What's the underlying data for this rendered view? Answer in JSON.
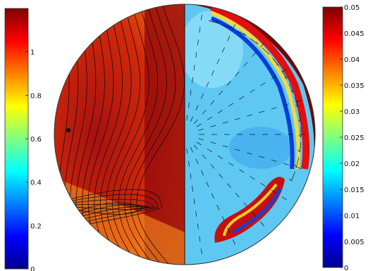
{
  "colormap": [
    "#00008f",
    "#0000ff",
    "#0080ff",
    "#00ffff",
    "#80ff80",
    "#ffff00",
    "#ff8000",
    "#ff0000",
    "#800000"
  ],
  "chart_data": {
    "type": "heatmap",
    "title": "",
    "panels": [
      {
        "name": "",
        "side": "left",
        "field": "scalar field with contour lines",
        "colorbar": {
          "side": "left",
          "range": [
            0,
            1.2
          ],
          "ticks": [
            0,
            0.2,
            0.4,
            0.6,
            0.8,
            1
          ],
          "tick_labels": [
            "0",
            "0.2",
            "0.4",
            "0.6",
            "0.8",
            "1"
          ]
        },
        "contour_count": 14
      },
      {
        "name": "",
        "side": "right",
        "field": "speed field with flow arrows",
        "colorbar": {
          "side": "right",
          "range": [
            0,
            0.05
          ],
          "ticks": [
            0,
            0.005,
            0.01,
            0.015,
            0.02,
            0.025,
            0.03,
            0.035,
            0.04,
            0.045,
            0.05
          ],
          "tick_labels": [
            "0",
            "0.005",
            "0.01",
            "0.015",
            "0.02",
            "0.025",
            "0.03",
            "0.035",
            "0.04",
            "0.045",
            "0.05"
          ]
        },
        "overlay": "arrows"
      }
    ],
    "grid": false,
    "legend": "none"
  }
}
